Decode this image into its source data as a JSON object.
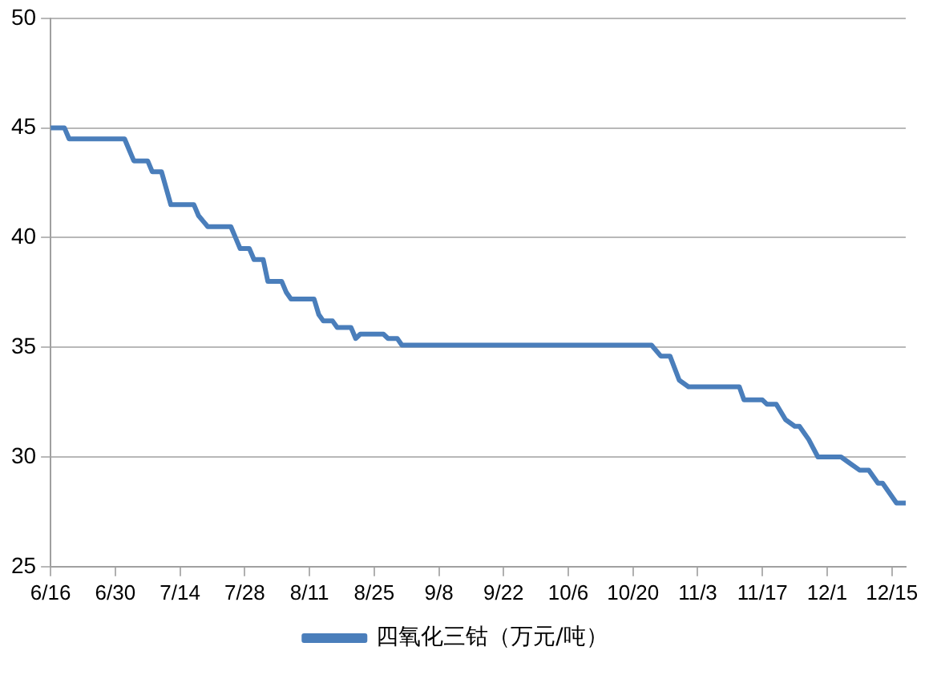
{
  "chart_data": {
    "type": "line",
    "x": [
      "--06-16",
      "--06-19",
      "--06-20",
      "--07-02",
      "--07-03",
      "--07-04",
      "--07-07",
      "--07-08",
      "--07-10",
      "--07-12",
      "--07-17",
      "--07-18",
      "--07-20",
      "--07-25",
      "--07-26",
      "--07-27",
      "--07-29",
      "--07-30",
      "--08-01",
      "--08-02",
      "--08-05",
      "--08-06",
      "--08-07",
      "--08-12",
      "--08-13",
      "--08-14",
      "--08-16",
      "--08-17",
      "--08-20",
      "--08-21",
      "--08-22",
      "--08-27",
      "--08-28",
      "--08-30",
      "--08-31",
      "--10-24",
      "--10-26",
      "--10-28",
      "--10-30",
      "--11-01",
      "--11-12",
      "--11-13",
      "--11-17",
      "--11-18",
      "--11-20",
      "--11-22",
      "--11-24",
      "--11-25",
      "--11-27",
      "--11-29",
      "--12-04",
      "--12-06",
      "--12-08",
      "--12-10",
      "--12-12",
      "--12-13",
      "--12-16",
      "--12-18"
    ],
    "series": [
      {
        "name": "四氧化三钴（万元/吨）",
        "color": "#4a7ebb",
        "values": [
          45,
          45,
          44.5,
          44.5,
          44,
          43.5,
          43.5,
          43,
          43,
          41.5,
          41.5,
          41,
          40.5,
          40.5,
          40,
          39.5,
          39.5,
          39,
          39,
          38,
          38,
          37.5,
          37.2,
          37.2,
          36.5,
          36.2,
          36.2,
          35.9,
          35.9,
          35.4,
          35.6,
          35.6,
          35.4,
          35.4,
          35.1,
          35.1,
          34.6,
          34.6,
          33.5,
          33.2,
          33.2,
          32.6,
          32.6,
          32.4,
          32.4,
          31.7,
          31.4,
          31.4,
          30.8,
          30,
          30,
          29.7,
          29.4,
          29.4,
          28.8,
          28.8,
          27.9,
          27.9
        ]
      }
    ],
    "xlim": [
      "--06-16",
      "--12-18"
    ],
    "xticks": [
      {
        "value": "--06-16",
        "label": "6/16"
      },
      {
        "value": "--06-30",
        "label": "6/30"
      },
      {
        "value": "--07-14",
        "label": "7/14"
      },
      {
        "value": "--07-28",
        "label": "7/28"
      },
      {
        "value": "--08-11",
        "label": "8/11"
      },
      {
        "value": "--08-25",
        "label": "8/25"
      },
      {
        "value": "--09-08",
        "label": "9/8"
      },
      {
        "value": "--09-22",
        "label": "9/22"
      },
      {
        "value": "--10-06",
        "label": "10/6"
      },
      {
        "value": "--10-20",
        "label": "10/20"
      },
      {
        "value": "--11-03",
        "label": "11/3"
      },
      {
        "value": "--11-17",
        "label": "11/17"
      },
      {
        "value": "--12-01",
        "label": "12/1"
      },
      {
        "value": "--12-15",
        "label": "12/15"
      }
    ],
    "ylim": [
      25,
      50
    ],
    "yticks": [
      25,
      30,
      35,
      40,
      45,
      50
    ],
    "grid": "y",
    "legend": "bottom",
    "marker": "none",
    "line_style": "solid"
  }
}
